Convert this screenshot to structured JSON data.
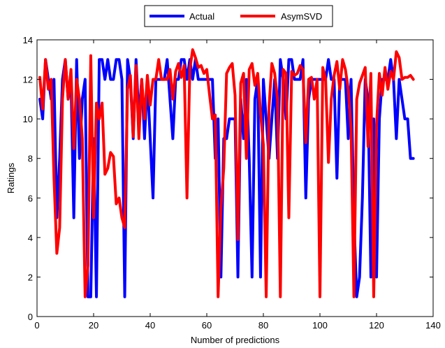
{
  "chart_data": {
    "type": "line",
    "title": "",
    "xlabel": "Number of predictions",
    "ylabel": "Ratings",
    "xlim": [
      0,
      140
    ],
    "ylim": [
      0,
      14
    ],
    "xticks": [
      0,
      20,
      40,
      60,
      80,
      100,
      120,
      140
    ],
    "yticks": [
      0,
      2,
      4,
      6,
      8,
      10,
      12,
      14
    ],
    "grid": false,
    "legend": {
      "placement": "top-center",
      "orientation": "horizontal"
    },
    "x": [
      1,
      2,
      3,
      4,
      5,
      6,
      7,
      8,
      9,
      10,
      11,
      12,
      13,
      14,
      15,
      16,
      17,
      18,
      19,
      20,
      21,
      22,
      23,
      24,
      25,
      26,
      27,
      28,
      29,
      30,
      31,
      32,
      33,
      34,
      35,
      36,
      37,
      38,
      39,
      40,
      41,
      42,
      43,
      44,
      45,
      46,
      47,
      48,
      49,
      50,
      51,
      52,
      53,
      54,
      55,
      56,
      57,
      58,
      59,
      60,
      61,
      62,
      63,
      64,
      65,
      66,
      67,
      68,
      69,
      70,
      71,
      72,
      73,
      74,
      75,
      76,
      77,
      78,
      79,
      80,
      81,
      82,
      83,
      84,
      85,
      86,
      87,
      88,
      89,
      90,
      91,
      92,
      93,
      94,
      95,
      96,
      97,
      98,
      99,
      100,
      101,
      102,
      103,
      104,
      105,
      106,
      107,
      108,
      109,
      110,
      111,
      112,
      113,
      114,
      115,
      116,
      117,
      118,
      119,
      120,
      121,
      122,
      123,
      124,
      125,
      126,
      127,
      128,
      129,
      130,
      131,
      132,
      133
    ],
    "series": [
      {
        "name": "Actual",
        "color": "#0000ff",
        "values": [
          11,
          10,
          13,
          12,
          11,
          12,
          5,
          8,
          12,
          13,
          11,
          12,
          5,
          13,
          8,
          11,
          12,
          1,
          1,
          9,
          1,
          13,
          13,
          12,
          13,
          12,
          12,
          13,
          13,
          12,
          1,
          13,
          12,
          9,
          13,
          10,
          12,
          9,
          12,
          9,
          6,
          12,
          12,
          12,
          12,
          13,
          11,
          9,
          12,
          12,
          13,
          13,
          12,
          13,
          12,
          13,
          12,
          12,
          12,
          12,
          12,
          12,
          8,
          10,
          2,
          9,
          9,
          10,
          10,
          10,
          2,
          11,
          9,
          12,
          8,
          2,
          11,
          12,
          2,
          12,
          10,
          8,
          10,
          12,
          8,
          13,
          12,
          10,
          13,
          13,
          12,
          12,
          12,
          13,
          6,
          11,
          12,
          12,
          12,
          12,
          12,
          12,
          13,
          12,
          12,
          7,
          12,
          12,
          12,
          9,
          12,
          5,
          1,
          2,
          6,
          12,
          11,
          2,
          10,
          2,
          10,
          12,
          12,
          12,
          13,
          12,
          9,
          12,
          11,
          10,
          10,
          8,
          8
        ]
      },
      {
        "name": "AsymSVD",
        "color": "#ff0000",
        "values": [
          12.1,
          10.5,
          13,
          11.5,
          12,
          7,
          3.2,
          4.5,
          11,
          13,
          11,
          12.5,
          8.5,
          12,
          11,
          9,
          1,
          2.6,
          13.2,
          5,
          10.8,
          10,
          10.8,
          7.2,
          7.5,
          8.3,
          8.1,
          5.7,
          6,
          5,
          4.5,
          11.5,
          12.2,
          9.1,
          12.7,
          9,
          12,
          10,
          12.2,
          10.7,
          12,
          12,
          13,
          12,
          12,
          12,
          12.5,
          11,
          12.4,
          12.8,
          12.1,
          12.7,
          6,
          12.5,
          13.5,
          13.1,
          12.6,
          12.7,
          12.3,
          12.5,
          11.2,
          10,
          10.2,
          1,
          5.5,
          7.5,
          12.3,
          12.6,
          12.8,
          11.2,
          3.9,
          11.8,
          12.3,
          8,
          12.5,
          12.8,
          11.7,
          12.3,
          10.3,
          8.7,
          1,
          10.6,
          12.8,
          12.3,
          11,
          1,
          12.5,
          12.3,
          5,
          12.4,
          12.2,
          12.3,
          12.7,
          12.5,
          8.8,
          12,
          12.1,
          11,
          12,
          1,
          12.6,
          12,
          7.8,
          11,
          12.2,
          12.9,
          11.5,
          13,
          12.5,
          11.5,
          9.5,
          1,
          11,
          11.8,
          12.2,
          12.6,
          8.6,
          12.3,
          1,
          9.7,
          12.3,
          11.2,
          12.6,
          11.5,
          12.4,
          12,
          13.4,
          13.1,
          12,
          12.1,
          12.1,
          12.2,
          12
        ]
      }
    ]
  }
}
